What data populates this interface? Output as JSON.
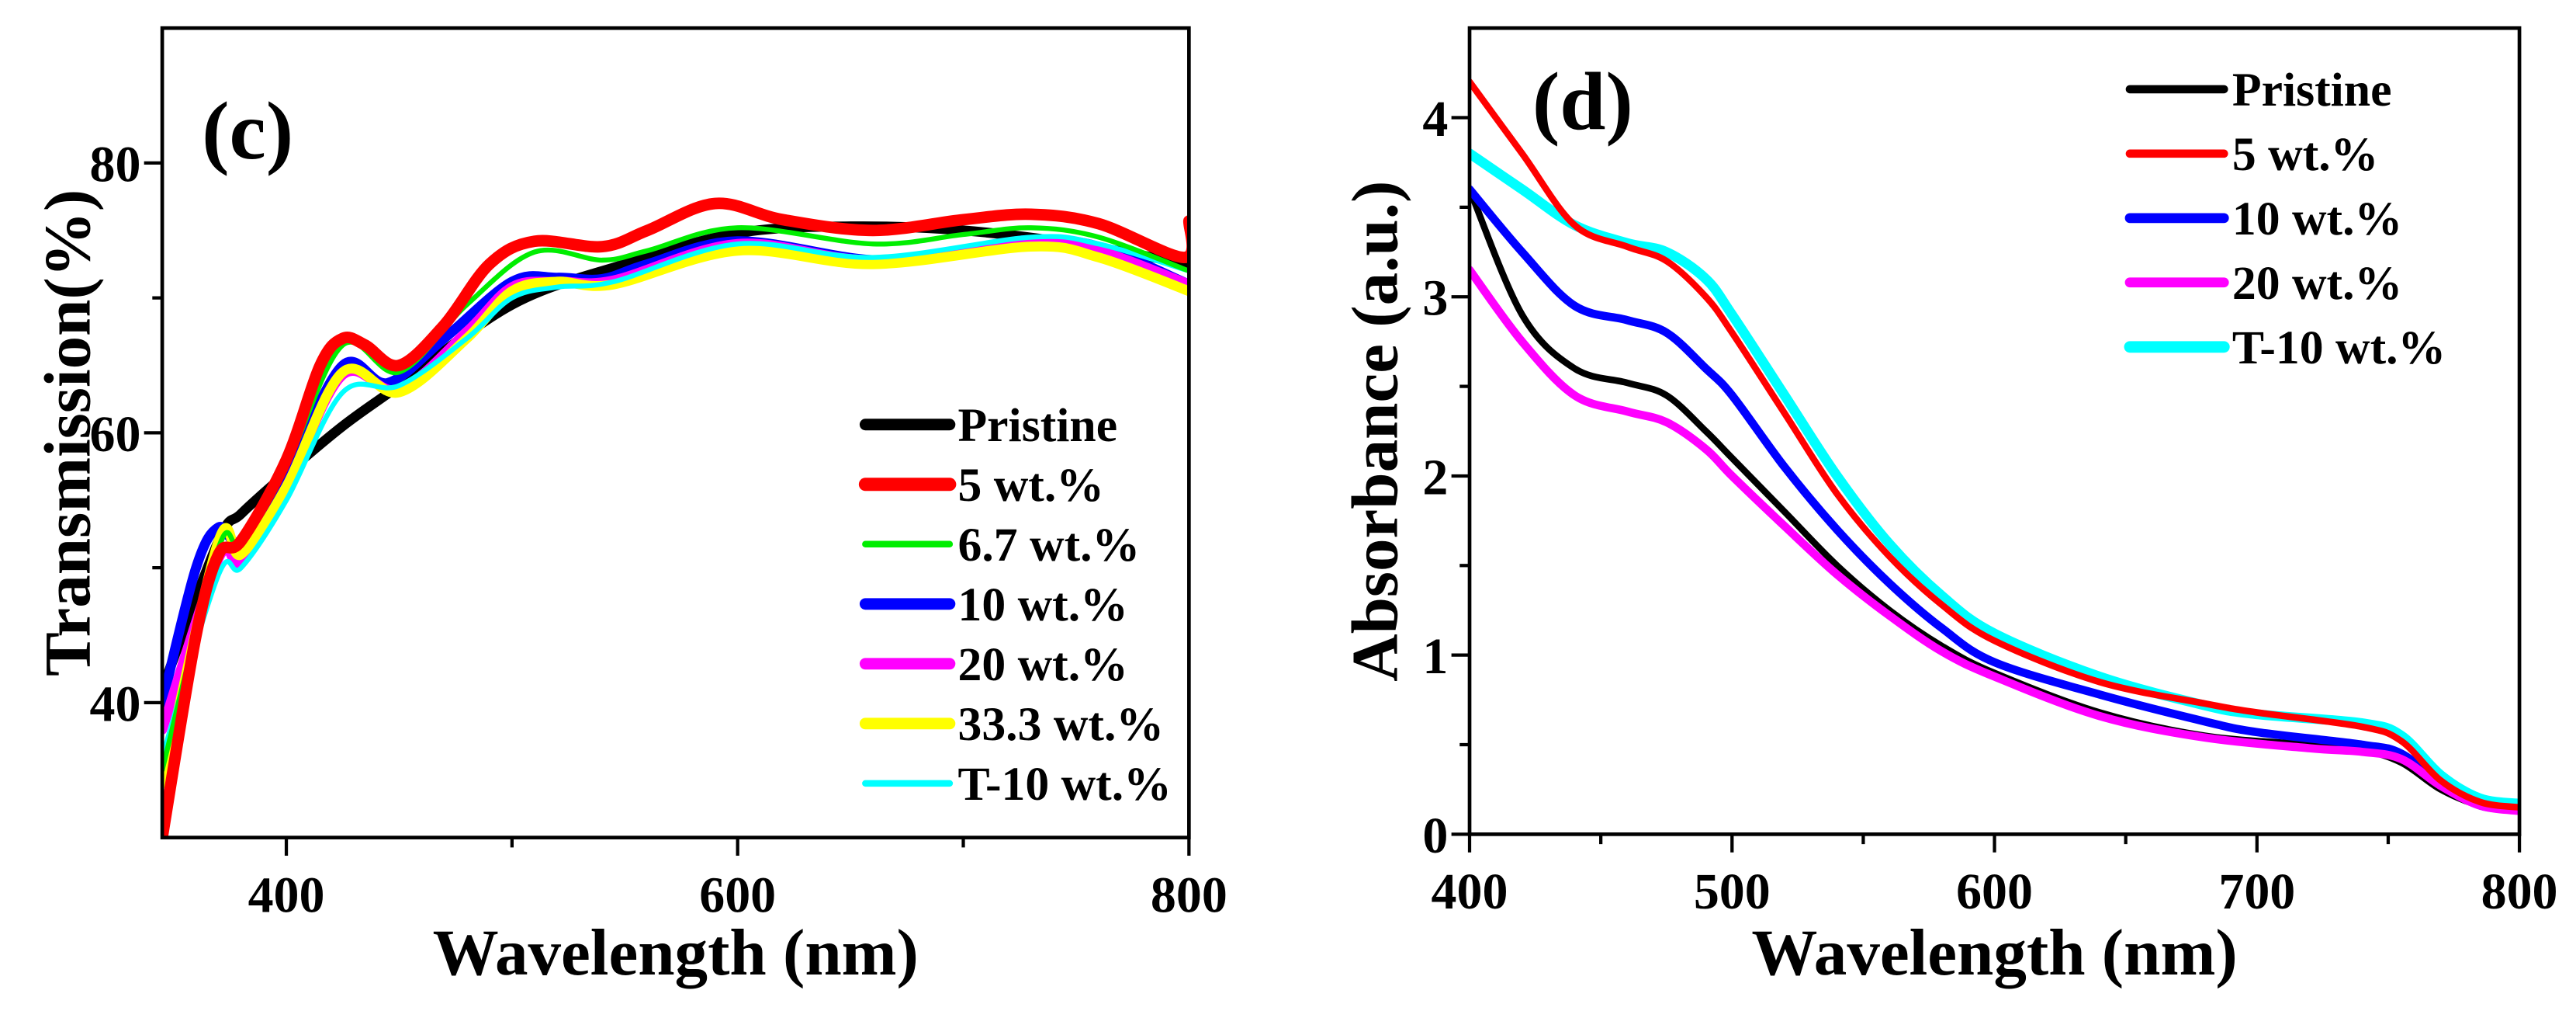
{
  "chart_data": [
    {
      "type": "line",
      "panel_label": "(c)",
      "xlabel": "Wavelength (nm)",
      "ylabel": "Transmission(%)",
      "xlim": [
        345,
        800
      ],
      "ylim": [
        30,
        90
      ],
      "xticks": [
        400,
        600,
        800
      ],
      "xminor": [
        500,
        700
      ],
      "yticks": [
        40,
        60,
        80
      ],
      "yminor": [
        50,
        70
      ],
      "grid": false,
      "legend_placement": "bottom-right",
      "series": [
        {
          "name": "Pristine",
          "color": "#000000",
          "x": [
            345,
            370,
            380,
            400,
            425,
            450,
            500,
            550,
            600,
            650,
            700,
            750,
            800
          ],
          "y": [
            41,
            52,
            54,
            57,
            60.5,
            63.5,
            69.5,
            72.5,
            74.8,
            75.3,
            75,
            74,
            72.5
          ]
        },
        {
          "name": "5 wt.%",
          "color": "#ff0000",
          "x": [
            345,
            360,
            370,
            380,
            400,
            415,
            425,
            435,
            450,
            470,
            490,
            510,
            540,
            560,
            590,
            620,
            660,
            700,
            730,
            760,
            798,
            800
          ],
          "y": [
            30,
            45,
            51,
            52,
            58,
            65,
            67,
            66.5,
            65,
            68,
            72.5,
            74.2,
            73.8,
            75,
            77,
            75.8,
            75,
            75.8,
            76.2,
            75.5,
            73,
            75.7
          ]
        },
        {
          "name": "6.7 wt.%",
          "color": "#00ee00",
          "x": [
            345,
            370,
            380,
            400,
            425,
            450,
            480,
            510,
            540,
            560,
            600,
            660,
            700,
            730,
            760,
            800
          ],
          "y": [
            35,
            51.5,
            51.8,
            57.5,
            66.5,
            64.5,
            69.5,
            73.4,
            72.8,
            73.5,
            75.2,
            74,
            74.7,
            75.2,
            74.5,
            72
          ]
        },
        {
          "name": "10 wt.%",
          "color": "#0000ff",
          "x": [
            345,
            360,
            370,
            380,
            400,
            425,
            445,
            470,
            500,
            520,
            540,
            560,
            600,
            660,
            700,
            730,
            760,
            800
          ],
          "y": [
            40,
            50,
            53,
            52,
            57,
            65,
            63.7,
            67,
            71.2,
            71.5,
            71.4,
            72.5,
            74.2,
            72.8,
            73.5,
            74.3,
            73.8,
            71
          ]
        },
        {
          "name": "20 wt.%",
          "color": "#ff00ff",
          "x": [
            345,
            370,
            380,
            400,
            425,
            450,
            480,
            500,
            520,
            545,
            600,
            660,
            730,
            760,
            800
          ],
          "y": [
            38,
            50.7,
            50.5,
            56,
            64.3,
            63.2,
            67.5,
            70.8,
            71.2,
            71.3,
            74,
            72.8,
            74.2,
            73.5,
            71
          ]
        },
        {
          "name": "33.3 wt.%",
          "color": "#ffff00",
          "x": [
            345,
            370,
            380,
            400,
            425,
            450,
            480,
            500,
            520,
            545,
            600,
            660,
            730,
            760,
            800
          ],
          "y": [
            34,
            52,
            51,
            56,
            64.5,
            63,
            67,
            70.5,
            71.2,
            71,
            73.5,
            72.5,
            73.8,
            73,
            70.5
          ]
        },
        {
          "name": "T-10 wt.%",
          "color": "#00ffff",
          "x": [
            345,
            370,
            380,
            400,
            425,
            450,
            480,
            500,
            520,
            545,
            600,
            660,
            730,
            760,
            800
          ],
          "y": [
            36,
            49.5,
            50,
            55,
            63,
            63.5,
            67,
            70,
            70.8,
            71.2,
            74,
            73,
            74.5,
            74,
            72
          ]
        }
      ]
    },
    {
      "type": "line",
      "panel_label": "(d)",
      "xlabel": "Wavelength (nm)",
      "ylabel": "Absorbance (a.u.)",
      "xlim": [
        400,
        800
      ],
      "ylim": [
        0,
        4.5
      ],
      "xticks": [
        400,
        500,
        600,
        700,
        800
      ],
      "xminor": [
        450,
        550,
        650,
        750
      ],
      "yticks": [
        0,
        1,
        2,
        3,
        4
      ],
      "yminor": [
        0.5,
        1.5,
        2.5,
        3.5
      ],
      "grid": false,
      "legend_placement": "top-right",
      "series": [
        {
          "name": "Pristine",
          "color": "#000000",
          "x": [
            400,
            420,
            440,
            460,
            475,
            490,
            500,
            520,
            540,
            560,
            580,
            600,
            640,
            680,
            720,
            740,
            755,
            770,
            785,
            800
          ],
          "y": [
            3.6,
            2.9,
            2.6,
            2.52,
            2.45,
            2.25,
            2.1,
            1.8,
            1.5,
            1.25,
            1.05,
            0.9,
            0.68,
            0.55,
            0.5,
            0.47,
            0.4,
            0.25,
            0.16,
            0.13
          ]
        },
        {
          "name": "5 wt.%",
          "color": "#ff0000",
          "x": [
            400,
            420,
            440,
            460,
            475,
            490,
            500,
            520,
            540,
            560,
            580,
            600,
            640,
            680,
            700,
            740,
            755,
            770,
            785,
            800
          ],
          "y": [
            4.2,
            3.8,
            3.4,
            3.28,
            3.2,
            3.0,
            2.8,
            2.35,
            1.9,
            1.55,
            1.28,
            1.08,
            0.85,
            0.73,
            0.68,
            0.6,
            0.52,
            0.3,
            0.18,
            0.15
          ]
        },
        {
          "name": "10 wt.%",
          "color": "#0000ff",
          "x": [
            400,
            420,
            440,
            460,
            475,
            490,
            500,
            520,
            540,
            560,
            580,
            600,
            640,
            680,
            700,
            740,
            755,
            770,
            785,
            800
          ],
          "y": [
            3.6,
            3.25,
            2.95,
            2.87,
            2.8,
            2.6,
            2.45,
            2.05,
            1.7,
            1.4,
            1.15,
            0.96,
            0.78,
            0.63,
            0.57,
            0.5,
            0.45,
            0.28,
            0.16,
            0.14
          ]
        },
        {
          "name": "20 wt.%",
          "color": "#ff00ff",
          "x": [
            400,
            420,
            440,
            460,
            475,
            490,
            500,
            520,
            540,
            560,
            580,
            600,
            640,
            680,
            720,
            740,
            755,
            770,
            785,
            800
          ],
          "y": [
            3.15,
            2.75,
            2.45,
            2.36,
            2.3,
            2.15,
            2.0,
            1.72,
            1.45,
            1.22,
            1.02,
            0.88,
            0.66,
            0.54,
            0.48,
            0.46,
            0.42,
            0.27,
            0.16,
            0.13
          ]
        },
        {
          "name": "T-10 wt.%",
          "color": "#00ffff",
          "x": [
            400,
            420,
            440,
            460,
            475,
            490,
            500,
            520,
            540,
            560,
            580,
            600,
            640,
            680,
            700,
            740,
            755,
            770,
            785,
            800
          ],
          "y": [
            3.8,
            3.6,
            3.4,
            3.3,
            3.25,
            3.1,
            2.9,
            2.45,
            2.0,
            1.62,
            1.33,
            1.12,
            0.88,
            0.72,
            0.67,
            0.62,
            0.55,
            0.33,
            0.2,
            0.17
          ]
        }
      ]
    }
  ]
}
